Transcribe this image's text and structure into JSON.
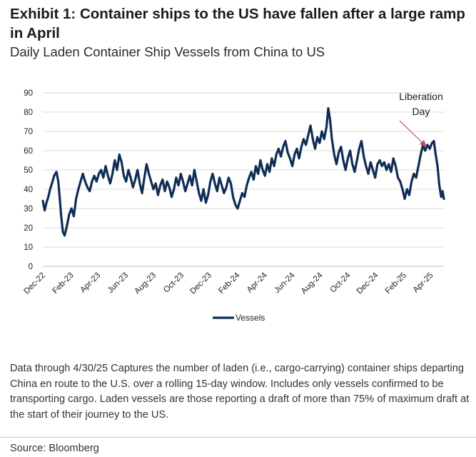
{
  "header": {
    "title": "Exhibit 1: Container ships to the US have fallen after a large ramp in April",
    "subtitle": "Daily Laden Container Ship Vessels from China to US"
  },
  "footnote": "Data through 4/30/25 Captures the number of laden (i.e., cargo-carrying) container ships departing China en route to the U.S. over a rolling 15-day window. Includes only vessels confirmed to be transporting cargo. Laden vessels are those reporting a draft of more than 75% of maximum draft at the start of their journey to the US.",
  "source": "Source: Bloomberg",
  "colors": {
    "series": "#0f2d55",
    "annotation_arrow": "#c0504d",
    "grid": "#d9d9d9"
  },
  "chart_data": {
    "type": "line",
    "title": "",
    "xlabel": "",
    "ylabel": "",
    "ylim": [
      0,
      90
    ],
    "yticks": [
      0,
      10,
      20,
      30,
      40,
      50,
      60,
      70,
      80,
      90
    ],
    "xlim": [
      "2022-12-01",
      "2025-04-30"
    ],
    "xtick_labels": [
      "Dec-22",
      "Feb-23",
      "Apr-23",
      "Jun-23",
      "Aug-23",
      "Oct-23",
      "Dec-23",
      "Feb-24",
      "Apr-24",
      "Jun-24",
      "Aug-24",
      "Oct-24",
      "Dec-24",
      "Feb-25",
      "Apr-25"
    ],
    "xtick_dates": [
      "2022-12-01",
      "2023-02-01",
      "2023-04-01",
      "2023-06-01",
      "2023-08-01",
      "2023-10-01",
      "2023-12-01",
      "2024-02-01",
      "2024-04-01",
      "2024-06-01",
      "2024-08-01",
      "2024-10-01",
      "2024-12-01",
      "2025-02-01",
      "2025-04-01"
    ],
    "grid": "horizontal",
    "legend": "bottom",
    "annotation": {
      "text_line1": "Liberation",
      "text_line2": "Day",
      "date": "2025-04-02",
      "value": 62
    },
    "series": [
      {
        "name": "Vessels",
        "points": [
          [
            "2022-12-01",
            34
          ],
          [
            "2022-12-05",
            29
          ],
          [
            "2022-12-09",
            33
          ],
          [
            "2022-12-13",
            36
          ],
          [
            "2022-12-17",
            40
          ],
          [
            "2022-12-21",
            43
          ],
          [
            "2022-12-26",
            47
          ],
          [
            "2022-12-31",
            49
          ],
          [
            "2023-01-04",
            44
          ],
          [
            "2023-01-07",
            36
          ],
          [
            "2023-01-10",
            27
          ],
          [
            "2023-01-14",
            18
          ],
          [
            "2023-01-18",
            16
          ],
          [
            "2023-01-23",
            21
          ],
          [
            "2023-01-28",
            27
          ],
          [
            "2023-02-02",
            30
          ],
          [
            "2023-02-07",
            26
          ],
          [
            "2023-02-12",
            35
          ],
          [
            "2023-02-17",
            40
          ],
          [
            "2023-02-22",
            44
          ],
          [
            "2023-02-27",
            48
          ],
          [
            "2023-03-04",
            44
          ],
          [
            "2023-03-09",
            41
          ],
          [
            "2023-03-14",
            39
          ],
          [
            "2023-03-19",
            44
          ],
          [
            "2023-03-24",
            47
          ],
          [
            "2023-03-29",
            44
          ],
          [
            "2023-04-03",
            48
          ],
          [
            "2023-04-08",
            50
          ],
          [
            "2023-04-13",
            46
          ],
          [
            "2023-04-18",
            52
          ],
          [
            "2023-04-23",
            47
          ],
          [
            "2023-04-28",
            43
          ],
          [
            "2023-05-03",
            48
          ],
          [
            "2023-05-08",
            55
          ],
          [
            "2023-05-13",
            50
          ],
          [
            "2023-05-18",
            58
          ],
          [
            "2023-05-23",
            54
          ],
          [
            "2023-05-28",
            47
          ],
          [
            "2023-06-02",
            44
          ],
          [
            "2023-06-07",
            50
          ],
          [
            "2023-06-12",
            46
          ],
          [
            "2023-06-17",
            41
          ],
          [
            "2023-06-22",
            45
          ],
          [
            "2023-06-27",
            50
          ],
          [
            "2023-07-02",
            43
          ],
          [
            "2023-07-07",
            38
          ],
          [
            "2023-07-12",
            46
          ],
          [
            "2023-07-17",
            53
          ],
          [
            "2023-07-22",
            48
          ],
          [
            "2023-07-27",
            44
          ],
          [
            "2023-08-01",
            40
          ],
          [
            "2023-08-06",
            43
          ],
          [
            "2023-08-11",
            37
          ],
          [
            "2023-08-16",
            42
          ],
          [
            "2023-08-21",
            45
          ],
          [
            "2023-08-26",
            39
          ],
          [
            "2023-08-31",
            44
          ],
          [
            "2023-09-05",
            41
          ],
          [
            "2023-09-10",
            36
          ],
          [
            "2023-09-15",
            40
          ],
          [
            "2023-09-20",
            46
          ],
          [
            "2023-09-25",
            42
          ],
          [
            "2023-09-30",
            48
          ],
          [
            "2023-10-05",
            44
          ],
          [
            "2023-10-10",
            39
          ],
          [
            "2023-10-15",
            43
          ],
          [
            "2023-10-20",
            47
          ],
          [
            "2023-10-25",
            42
          ],
          [
            "2023-10-30",
            50
          ],
          [
            "2023-11-04",
            44
          ],
          [
            "2023-11-09",
            38
          ],
          [
            "2023-11-14",
            34
          ],
          [
            "2023-11-19",
            40
          ],
          [
            "2023-11-24",
            33
          ],
          [
            "2023-11-29",
            37
          ],
          [
            "2023-12-04",
            44
          ],
          [
            "2023-12-09",
            48
          ],
          [
            "2023-12-14",
            43
          ],
          [
            "2023-12-19",
            39
          ],
          [
            "2023-12-24",
            46
          ],
          [
            "2023-12-29",
            42
          ],
          [
            "2024-01-03",
            38
          ],
          [
            "2024-01-08",
            41
          ],
          [
            "2024-01-13",
            46
          ],
          [
            "2024-01-18",
            43
          ],
          [
            "2024-01-23",
            36
          ],
          [
            "2024-01-28",
            32
          ],
          [
            "2024-02-02",
            30
          ],
          [
            "2024-02-07",
            34
          ],
          [
            "2024-02-12",
            38
          ],
          [
            "2024-02-17",
            36
          ],
          [
            "2024-02-22",
            42
          ],
          [
            "2024-02-27",
            46
          ],
          [
            "2024-03-03",
            49
          ],
          [
            "2024-03-08",
            45
          ],
          [
            "2024-03-13",
            52
          ],
          [
            "2024-03-18",
            48
          ],
          [
            "2024-03-23",
            55
          ],
          [
            "2024-03-28",
            50
          ],
          [
            "2024-04-02",
            47
          ],
          [
            "2024-04-07",
            53
          ],
          [
            "2024-04-12",
            49
          ],
          [
            "2024-04-17",
            56
          ],
          [
            "2024-04-22",
            52
          ],
          [
            "2024-04-27",
            58
          ],
          [
            "2024-05-02",
            61
          ],
          [
            "2024-05-07",
            57
          ],
          [
            "2024-05-12",
            62
          ],
          [
            "2024-05-17",
            65
          ],
          [
            "2024-05-22",
            59
          ],
          [
            "2024-05-27",
            56
          ],
          [
            "2024-06-01",
            52
          ],
          [
            "2024-06-06",
            58
          ],
          [
            "2024-06-11",
            61
          ],
          [
            "2024-06-16",
            56
          ],
          [
            "2024-06-21",
            62
          ],
          [
            "2024-06-26",
            66
          ],
          [
            "2024-07-01",
            63
          ],
          [
            "2024-07-06",
            68
          ],
          [
            "2024-07-11",
            73
          ],
          [
            "2024-07-16",
            66
          ],
          [
            "2024-07-21",
            61
          ],
          [
            "2024-07-26",
            67
          ],
          [
            "2024-07-31",
            64
          ],
          [
            "2024-08-05",
            70
          ],
          [
            "2024-08-10",
            66
          ],
          [
            "2024-08-15",
            72
          ],
          [
            "2024-08-19",
            82
          ],
          [
            "2024-08-23",
            76
          ],
          [
            "2024-08-27",
            66
          ],
          [
            "2024-09-01",
            58
          ],
          [
            "2024-09-06",
            53
          ],
          [
            "2024-09-11",
            59
          ],
          [
            "2024-09-16",
            62
          ],
          [
            "2024-09-21",
            55
          ],
          [
            "2024-09-26",
            50
          ],
          [
            "2024-10-01",
            56
          ],
          [
            "2024-10-06",
            60
          ],
          [
            "2024-10-11",
            53
          ],
          [
            "2024-10-16",
            49
          ],
          [
            "2024-10-21",
            55
          ],
          [
            "2024-10-26",
            61
          ],
          [
            "2024-10-31",
            65
          ],
          [
            "2024-11-05",
            57
          ],
          [
            "2024-11-10",
            52
          ],
          [
            "2024-11-15",
            48
          ],
          [
            "2024-11-20",
            54
          ],
          [
            "2024-11-25",
            50
          ],
          [
            "2024-11-30",
            46
          ],
          [
            "2024-12-05",
            53
          ],
          [
            "2024-12-10",
            55
          ],
          [
            "2024-12-15",
            52
          ],
          [
            "2024-12-20",
            54
          ],
          [
            "2024-12-25",
            50
          ],
          [
            "2024-12-30",
            53
          ],
          [
            "2025-01-04",
            49
          ],
          [
            "2025-01-09",
            56
          ],
          [
            "2025-01-14",
            52
          ],
          [
            "2025-01-19",
            46
          ],
          [
            "2025-01-24",
            44
          ],
          [
            "2025-01-29",
            40
          ],
          [
            "2025-02-03",
            35
          ],
          [
            "2025-02-08",
            40
          ],
          [
            "2025-02-13",
            37
          ],
          [
            "2025-02-18",
            44
          ],
          [
            "2025-02-23",
            48
          ],
          [
            "2025-02-28",
            46
          ],
          [
            "2025-03-05",
            52
          ],
          [
            "2025-03-10",
            58
          ],
          [
            "2025-03-15",
            63
          ],
          [
            "2025-03-20",
            60
          ],
          [
            "2025-03-25",
            63
          ],
          [
            "2025-03-30",
            61
          ],
          [
            "2025-04-04",
            64
          ],
          [
            "2025-04-08",
            65
          ],
          [
            "2025-04-12",
            58
          ],
          [
            "2025-04-16",
            52
          ],
          [
            "2025-04-20",
            42
          ],
          [
            "2025-04-24",
            36
          ],
          [
            "2025-04-27",
            39
          ],
          [
            "2025-04-30",
            35
          ]
        ]
      }
    ]
  }
}
